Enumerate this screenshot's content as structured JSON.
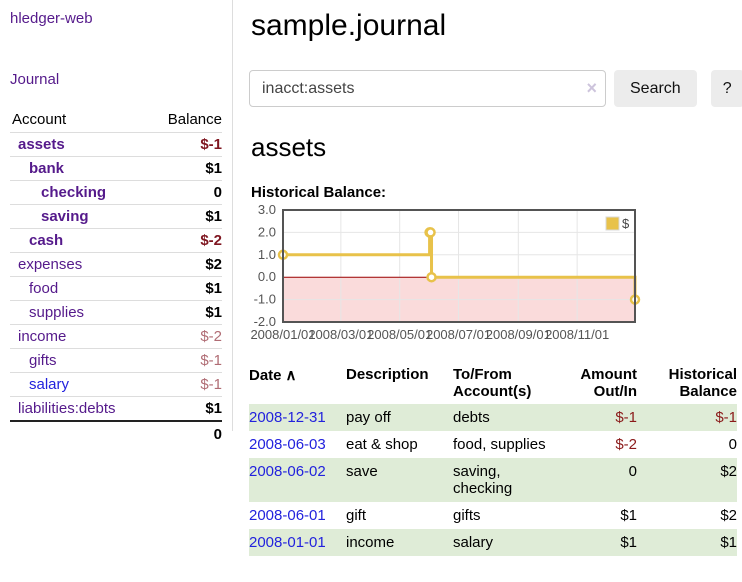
{
  "app": {
    "brand": "hledger-web"
  },
  "sidebar": {
    "nav": {
      "journal_label": "Journal"
    },
    "accounts_table": {
      "headers": [
        "Account",
        "Balance"
      ],
      "rows": [
        {
          "label": "assets",
          "indent": 0,
          "emphasis": true,
          "balance": "$-1",
          "negative": true
        },
        {
          "label": "bank",
          "indent": 1,
          "emphasis": true,
          "balance": "$1",
          "negative": false
        },
        {
          "label": "checking",
          "indent": 2,
          "emphasis": true,
          "balance": "0",
          "negative": false
        },
        {
          "label": "saving",
          "indent": 2,
          "emphasis": true,
          "balance": "$1",
          "negative": false
        },
        {
          "label": "cash",
          "indent": 1,
          "emphasis": true,
          "balance": "$-2",
          "negative": true
        },
        {
          "label": "expenses",
          "indent": 0,
          "emphasis": false,
          "balance": "$2",
          "negative": false
        },
        {
          "label": "food",
          "indent": 1,
          "emphasis": false,
          "balance": "$1",
          "negative": false
        },
        {
          "label": "supplies",
          "indent": 1,
          "emphasis": false,
          "balance": "$1",
          "negative": false
        },
        {
          "label": "income",
          "indent": 0,
          "emphasis": false,
          "balance": "$-2",
          "negative": true
        },
        {
          "label": "gifts",
          "indent": 1,
          "emphasis": false,
          "balance": "$-1",
          "negative": true
        },
        {
          "label": "salary",
          "indent": 1,
          "emphasis": false,
          "balance": "$-1",
          "negative": true,
          "link_color": "blue"
        },
        {
          "label": "liabilities:debts",
          "indent": 0,
          "emphasis": false,
          "balance": "$1",
          "negative": false
        }
      ],
      "total": "0"
    }
  },
  "main": {
    "title": "sample.journal",
    "search": {
      "value": "inacct:assets",
      "clear_icon": "×",
      "button_label": "Search",
      "help_label": "?"
    },
    "account_heading": "assets",
    "chart_heading": "Historical Balance:"
  },
  "chart_data": {
    "type": "line",
    "step": true,
    "title": "Historical Balance:",
    "xlim": [
      "2008-01-01",
      "2008-12-31"
    ],
    "ylim": [
      -2,
      3
    ],
    "x_tick_labels": [
      "2008/01/01",
      "2008/03/01",
      "2008/05/01",
      "2008/07/01",
      "2008/09/01",
      "2008/11/01"
    ],
    "y_ticks": [
      3,
      2,
      1,
      0,
      -1,
      -2
    ],
    "y_tick_labels": [
      "3.0",
      "2.0",
      "1.0",
      "0.0",
      "-1.0",
      "-2.0"
    ],
    "series": [
      {
        "name": "$",
        "color": "#e8c24a",
        "points": [
          {
            "date": "2008-01-01",
            "value": 1
          },
          {
            "date": "2008-06-01",
            "value": 2
          },
          {
            "date": "2008-06-02",
            "value": 2
          },
          {
            "date": "2008-06-03",
            "value": 0
          },
          {
            "date": "2008-12-31",
            "value": -1
          }
        ]
      }
    ],
    "legend": {
      "position": "top-right",
      "label": "$"
    },
    "grid": {
      "border_color": "#545454",
      "grid_color": "#e6e6e6",
      "tick_color": "#545454",
      "negative_region_fill": "#fadbdb",
      "zero_line_color": "#990000"
    }
  },
  "register": {
    "headers": [
      "Date",
      "Description",
      "To/From Account(s)",
      "Amount Out/In",
      "Historical Balance"
    ],
    "sort_caret": "∧",
    "rows": [
      {
        "date": "2008-12-31",
        "description": "pay off",
        "accounts": "debts",
        "amount": "$-1",
        "amount_negative": true,
        "balance": "$-1",
        "balance_negative": true
      },
      {
        "date": "2008-06-03",
        "description": "eat & shop",
        "accounts": "food, supplies",
        "amount": "$-2",
        "amount_negative": true,
        "balance": "0",
        "balance_negative": false
      },
      {
        "date": "2008-06-02",
        "description": "save",
        "accounts": "saving, checking",
        "amount": "0",
        "amount_negative": false,
        "balance": "$2",
        "balance_negative": false
      },
      {
        "date": "2008-06-01",
        "description": "gift",
        "accounts": "gifts",
        "amount": "$1",
        "amount_negative": false,
        "balance": "$2",
        "balance_negative": false
      },
      {
        "date": "2008-01-01",
        "description": "income",
        "accounts": "salary",
        "amount": "$1",
        "amount_negative": false,
        "balance": "$1",
        "balance_negative": false
      }
    ]
  }
}
